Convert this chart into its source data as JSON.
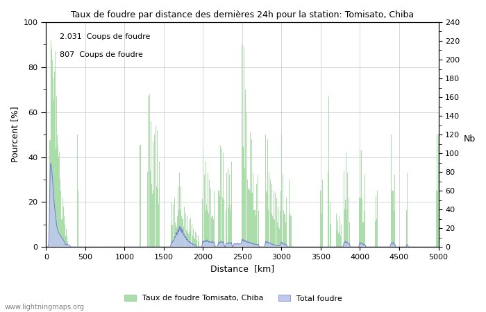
{
  "title": "Taux de foudre par distance des dernières 24h pour la station: Tomisato, Chiba",
  "xlabel": "Distance  [km]",
  "ylabel_left": "Pourcent [%]",
  "ylabel_right": "Nb",
  "annotation_line1": "2.031  Coups de foudre",
  "annotation_line2": "807  Coups de foudre",
  "legend_green": "Taux de foudre Tomisato, Chiba",
  "legend_blue": "Total foudre",
  "watermark": "www.lightningmaps.org",
  "xlim": [
    0,
    5000
  ],
  "ylim_left": [
    0,
    100
  ],
  "ylim_right": [
    0,
    240
  ],
  "xticks": [
    0,
    500,
    1000,
    1500,
    2000,
    2500,
    3000,
    3500,
    4000,
    4500,
    5000
  ],
  "yticks_left": [
    0,
    20,
    40,
    60,
    80,
    100
  ],
  "yticks_right": [
    0,
    20,
    40,
    60,
    80,
    100,
    120,
    140,
    160,
    180,
    200,
    220,
    240
  ],
  "green_color": "#aaddaa",
  "blue_color": "#c0c8f0",
  "blue_line_color": "#7080c8",
  "bg_color": "#ffffff",
  "grid_color": "#c8c8c8"
}
